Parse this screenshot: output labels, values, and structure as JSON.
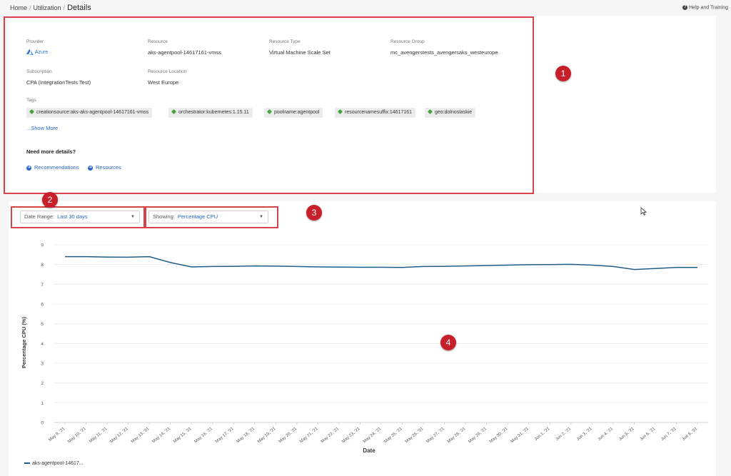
{
  "breadcrumb": {
    "home": "Home",
    "utilization": "Utilization",
    "current": "Details"
  },
  "help": {
    "label": "Help and Training",
    "icon": "help-circle-icon"
  },
  "details": {
    "provider": {
      "label": "Provider",
      "value": "Azure",
      "icon": "azure-logo-icon"
    },
    "resource": {
      "label": "Resource",
      "value": "aks-agentpool-14617161-vmss"
    },
    "resource_type": {
      "label": "Resource Type",
      "value": "Virtual Machine Scale Set"
    },
    "resource_group": {
      "label": "Resource Group",
      "value": "mc_avengerstests_avengersaks_westeurope"
    },
    "subscription": {
      "label": "Subscription",
      "value": "CPA (IntegrationTests Test)"
    },
    "resource_location": {
      "label": "Resource Location",
      "value": "West Europe"
    },
    "tags_label": "Tags",
    "tags": [
      "creationsource:aks-aks-agentpool-14617161-vmss",
      "orchestrator:kubernetes:1.15.11",
      "poolname:agentpool",
      "resourcenamesuffix:14617161",
      "geo:dolnoslaskie"
    ],
    "show_more": "...Show More",
    "more_details_heading": "Need more details?",
    "links": {
      "recommendations": "Recommendations",
      "resources": "Resources"
    }
  },
  "annotations": {
    "b1": "1",
    "b2": "2",
    "b3": "3",
    "b4": "4",
    "color": "#c8202b"
  },
  "filters": {
    "date_range": {
      "label": "Date Range:",
      "value": "Last 30 days"
    },
    "showing": {
      "label": "Showing:",
      "value": "Percentage CPU"
    }
  },
  "chart_data": {
    "type": "line",
    "xlabel": "Date",
    "ylabel": "Percentage CPU (%)",
    "ylim": [
      0,
      9
    ],
    "yticks": [
      0,
      1,
      2,
      3,
      4,
      5,
      6,
      7,
      8,
      9
    ],
    "grid": true,
    "legend_position": "bottom-left",
    "categories": [
      "May 9, '21",
      "May 10, '21",
      "May 11, '21",
      "May 12, '21",
      "May 13, '21",
      "May 14, '21",
      "May 15, '21",
      "May 16, '21",
      "May 17, '21",
      "May 18, '21",
      "May 19, '21",
      "May 20, '21",
      "May 21, '21",
      "May 22, '21",
      "May 23, '21",
      "May 24, '21",
      "May 25, '21",
      "May 26, '21",
      "May 27, '21",
      "May 28, '21",
      "May 29, '21",
      "May 30, '21",
      "May 31, '21",
      "Jun 1, '21",
      "Jun 2, '21",
      "Jun 3, '21",
      "Jun 4, '21",
      "Jun 5, '21",
      "Jun 6, '21",
      "Jun 7, '21",
      "Jun 8, '21"
    ],
    "series": [
      {
        "name": "aks-agentpool-14617...",
        "color": "#1f5e8a",
        "values": [
          8.4,
          8.4,
          8.38,
          8.37,
          8.4,
          8.1,
          7.88,
          7.9,
          7.91,
          7.93,
          7.92,
          7.9,
          7.88,
          7.87,
          7.86,
          7.86,
          7.85,
          7.9,
          7.91,
          7.93,
          7.95,
          7.97,
          7.99,
          8.0,
          8.01,
          7.97,
          7.9,
          7.75,
          7.8,
          7.85,
          7.85
        ]
      }
    ]
  }
}
